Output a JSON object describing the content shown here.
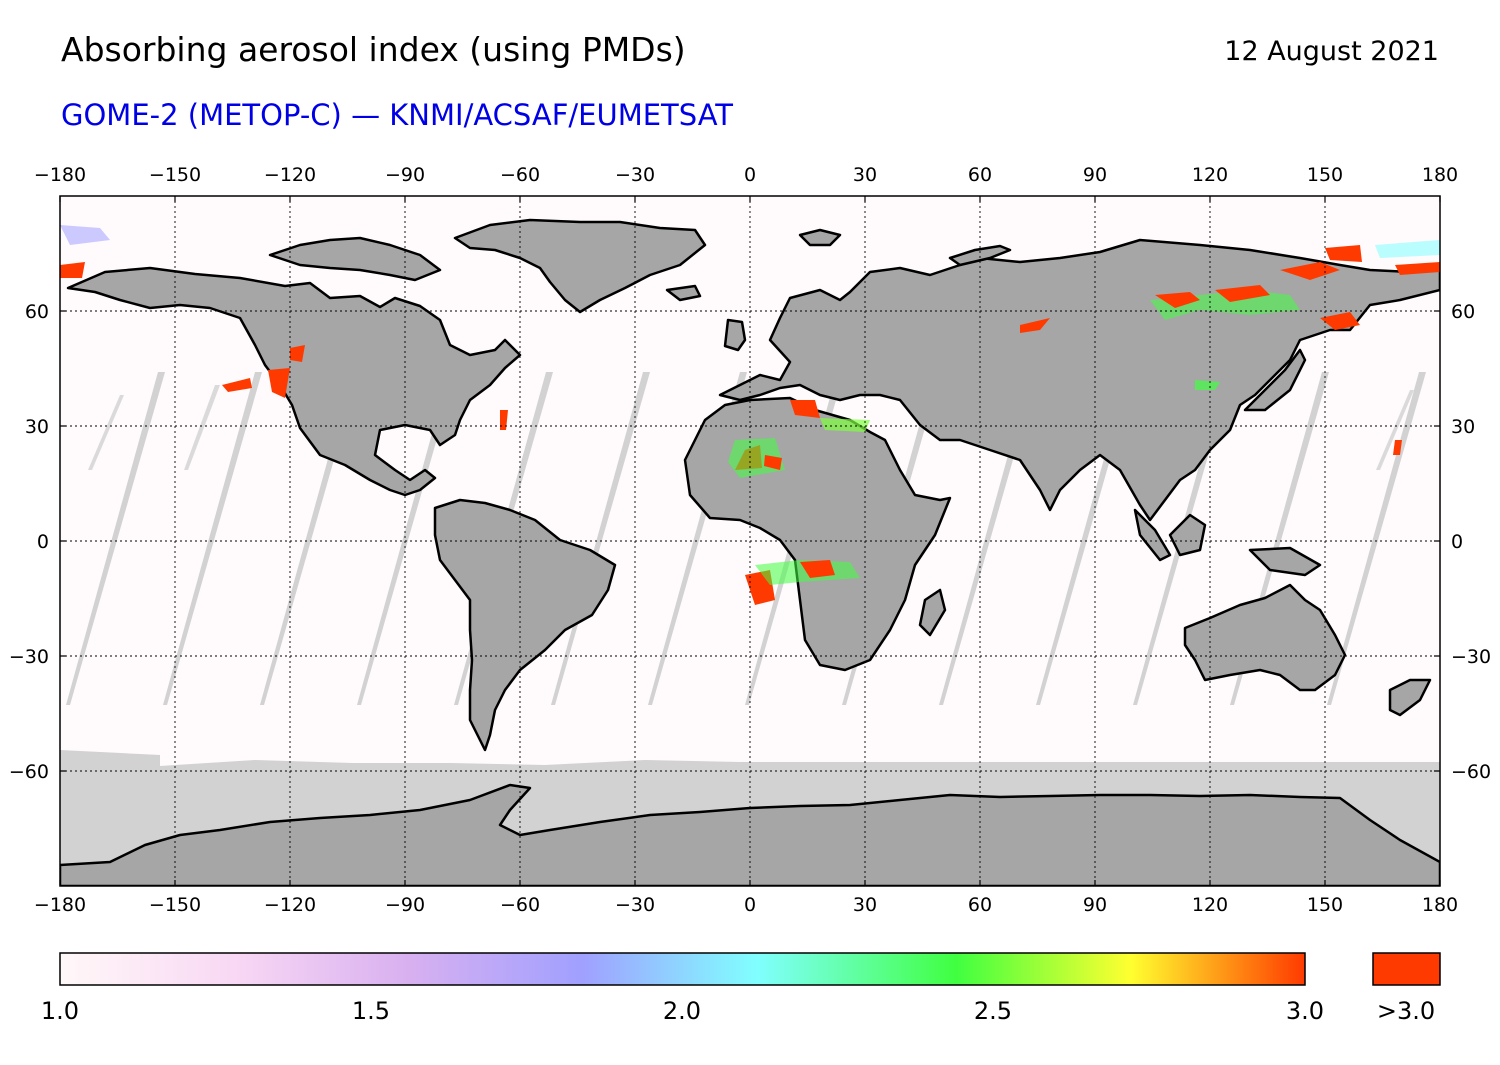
{
  "title": "Absorbing aerosol index (using PMDs)",
  "date": "12 August 2021",
  "subtitle": "GOME-2 (METOP-C) — KNMI/ACSAF/EUMETSAT",
  "map": {
    "lon_ticks": [
      "−180",
      "−150",
      "−120",
      "−90",
      "−60",
      "−30",
      "0",
      "30",
      "60",
      "90",
      "120",
      "150",
      "180"
    ],
    "lat_ticks": [
      "60",
      "30",
      "0",
      "−30",
      "−60"
    ]
  },
  "colorbar": {
    "labels": [
      "1.0",
      "1.5",
      "2.0",
      "2.5",
      "3.0"
    ],
    "over_label": ">3.0",
    "over_color": "#ff3a00",
    "colors": [
      "#fff8f8",
      "#f8d8f4",
      "#d8b0f0",
      "#a0a0ff",
      "#80ffff",
      "#40ff40",
      "#ffff30",
      "#ff3a00"
    ]
  }
}
